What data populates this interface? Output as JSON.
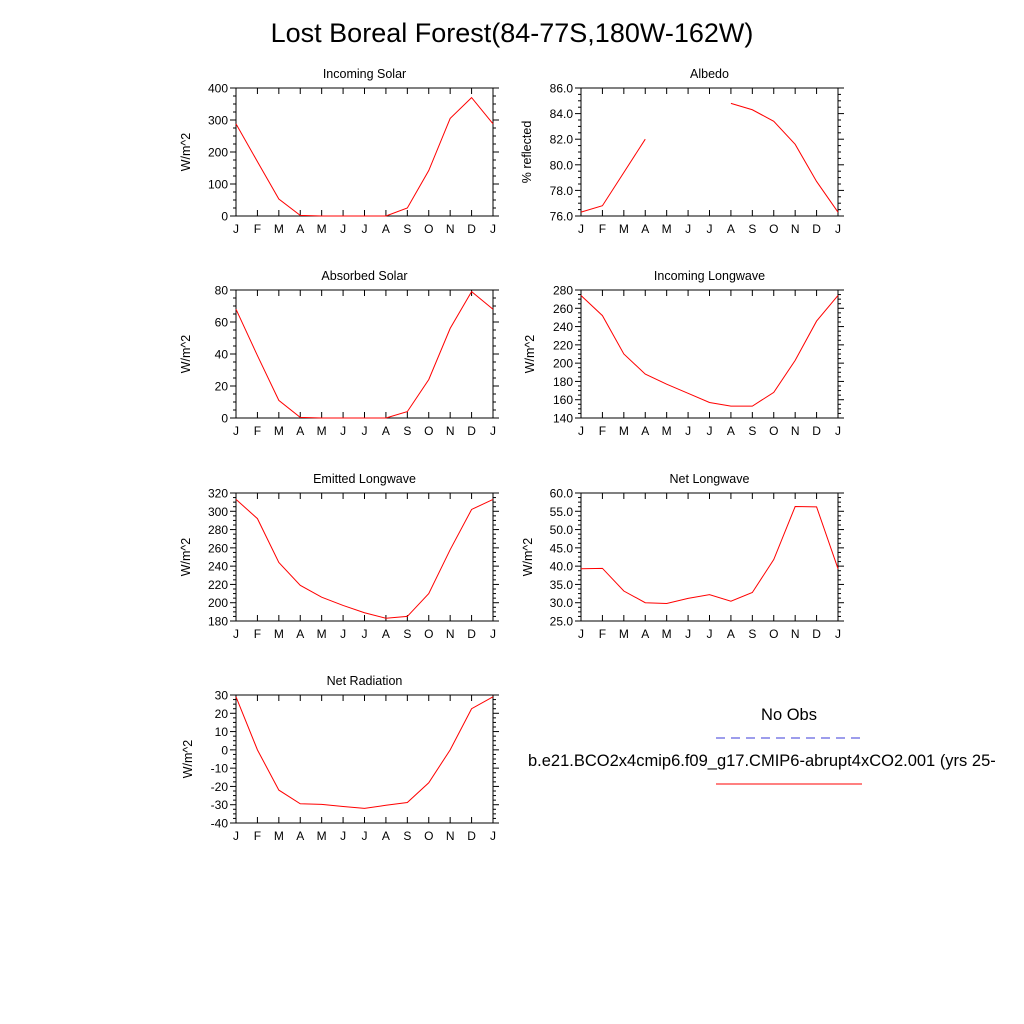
{
  "title": "Lost Boreal Forest(84-77S,180W-162W)",
  "legend": {
    "obs_label": "No Obs",
    "obs_color": "#3b3bd8",
    "model_label": "b.e21.BCO2x4cmip6.f09_g17.CMIP6-abrupt4xCO2.001 (yrs 25-",
    "model_color": "#ff0000"
  },
  "months": [
    "J",
    "F",
    "M",
    "A",
    "M",
    "J",
    "J",
    "A",
    "S",
    "O",
    "N",
    "D",
    "J"
  ],
  "chart_data": [
    {
      "type": "line",
      "title": "Incoming Solar",
      "ylabel": "W/m^2",
      "ylim": [
        0,
        400
      ],
      "yticks": [
        0,
        100,
        200,
        300,
        400
      ],
      "ytick_labels": [
        "0",
        "100",
        "200",
        "300",
        "400"
      ],
      "series": [
        {
          "values": [
            288,
            170,
            53,
            2,
            0,
            0,
            0,
            0,
            25,
            142,
            305,
            370,
            288
          ]
        }
      ]
    },
    {
      "type": "line",
      "title": "Albedo",
      "ylabel": "% reflected",
      "ylim": [
        76,
        86
      ],
      "yticks": [
        76,
        78,
        80,
        82,
        84,
        86
      ],
      "ytick_labels": [
        "76.0",
        "78.0",
        "80.0",
        "82.0",
        "84.0",
        "86.0"
      ],
      "series": [
        {
          "values": [
            76.3,
            76.8,
            79.4,
            82.0,
            null,
            null,
            null,
            84.8,
            84.3,
            83.4,
            81.6,
            78.7,
            76.3
          ]
        }
      ]
    },
    {
      "type": "line",
      "title": "Absorbed Solar",
      "ylabel": "W/m^2",
      "ylim": [
        0,
        80
      ],
      "yticks": [
        0,
        20,
        40,
        60,
        80
      ],
      "ytick_labels": [
        "0",
        "20",
        "40",
        "60",
        "80"
      ],
      "series": [
        {
          "values": [
            68,
            39,
            11,
            0.4,
            0,
            0,
            0,
            0,
            4,
            24,
            56,
            79,
            68
          ]
        }
      ]
    },
    {
      "type": "line",
      "title": "Incoming Longwave",
      "ylabel": "W/m^2",
      "ylim": [
        140,
        280
      ],
      "yticks": [
        140,
        160,
        180,
        200,
        220,
        240,
        260,
        280
      ],
      "ytick_labels": [
        "140",
        "160",
        "180",
        "200",
        "220",
        "240",
        "260",
        "280"
      ],
      "series": [
        {
          "values": [
            274,
            252,
            210,
            188,
            177,
            167,
            157,
            153,
            153,
            168,
            203,
            246,
            274
          ]
        }
      ]
    },
    {
      "type": "line",
      "title": "Emitted Longwave",
      "ylabel": "W/m^2",
      "ylim": [
        180,
        320
      ],
      "yticks": [
        180,
        200,
        220,
        240,
        260,
        280,
        300,
        320
      ],
      "ytick_labels": [
        "180",
        "200",
        "220",
        "240",
        "260",
        "280",
        "300",
        "320"
      ],
      "series": [
        {
          "values": [
            313,
            292,
            244,
            219,
            206,
            197,
            189,
            183,
            185,
            210,
            258,
            302,
            313
          ]
        }
      ]
    },
    {
      "type": "line",
      "title": "Net Longwave",
      "ylabel": "W/m^2",
      "ylim": [
        25,
        60
      ],
      "yticks": [
        25,
        30,
        35,
        40,
        45,
        50,
        55,
        60
      ],
      "ytick_labels": [
        "25.0",
        "30.0",
        "35.0",
        "40.0",
        "45.0",
        "50.0",
        "55.0",
        "60.0"
      ],
      "series": [
        {
          "values": [
            39.3,
            39.4,
            33.2,
            30.0,
            29.8,
            31.2,
            32.2,
            30.4,
            32.8,
            41.8,
            56.3,
            56.2,
            39.3
          ]
        }
      ]
    },
    {
      "type": "line",
      "title": "Net Radiation",
      "ylabel": "W/m^2",
      "ylim": [
        -40,
        30
      ],
      "yticks": [
        -40,
        -30,
        -20,
        -10,
        0,
        10,
        20,
        30
      ],
      "ytick_labels": [
        "-40",
        "-30",
        "-20",
        "-10",
        "0",
        "10",
        "20",
        "30"
      ],
      "series": [
        {
          "values": [
            29,
            0,
            -22,
            -29.5,
            -29.8,
            -31,
            -32,
            -30.3,
            -28.8,
            -18,
            0,
            22.5,
            29
          ]
        }
      ]
    }
  ]
}
